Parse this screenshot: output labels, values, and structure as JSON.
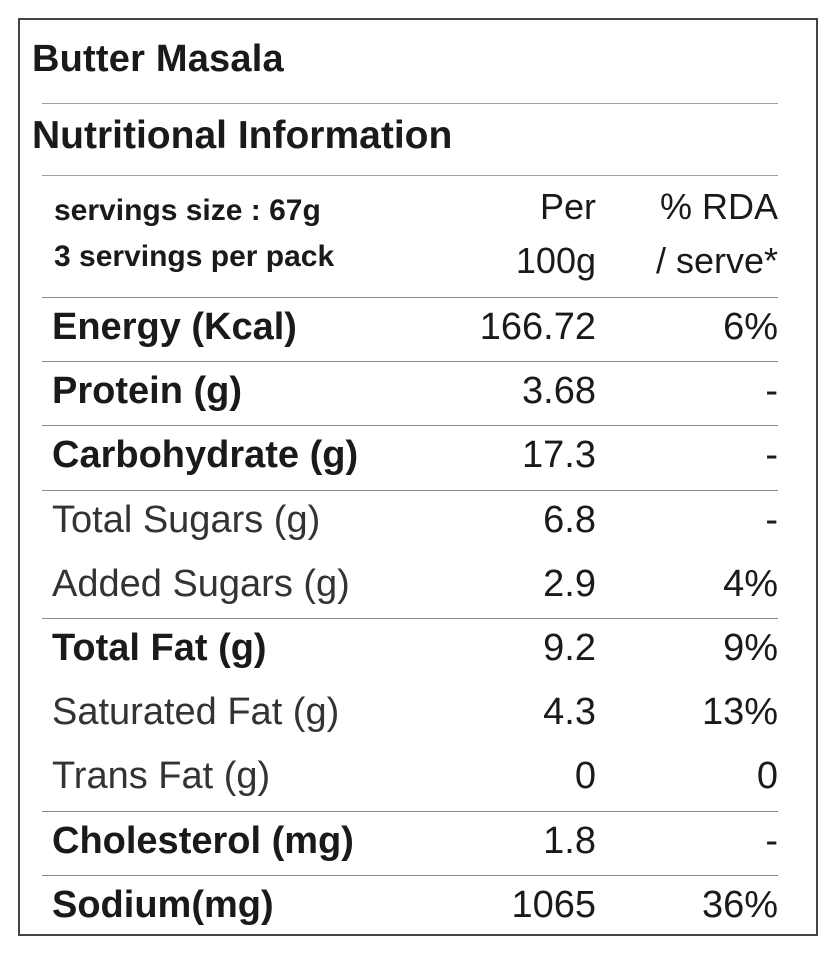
{
  "label": {
    "product_name": "Butter Masala",
    "section_title": "Nutritional Information",
    "serving_size": "servings size : 67g",
    "servings_per_pack": "3 servings per pack",
    "col_per_line1": "Per",
    "col_per_line2": "100g",
    "col_rda_line1": "% RDA",
    "col_rda_line2": "/ serve*"
  },
  "rows": [
    {
      "name": "Energy (Kcal)",
      "per100g": "166.72",
      "rda": "6%",
      "style": "bold"
    },
    {
      "name": "Protein (g)",
      "per100g": "3.68",
      "rda": "-",
      "style": "bold"
    },
    {
      "name": "Carbohydrate (g)",
      "per100g": "17.3",
      "rda": "-",
      "style": "bold"
    },
    {
      "name": "Total Sugars (g)",
      "per100g": "6.8",
      "rda": "-",
      "style": "light"
    },
    {
      "name": "Added Sugars (g)",
      "per100g": "2.9",
      "rda": "4%",
      "style": "light"
    },
    {
      "name": "Total Fat (g)",
      "per100g": "9.2",
      "rda": "9%",
      "style": "bold"
    },
    {
      "name": "Saturated Fat (g)",
      "per100g": "4.3",
      "rda": "13%",
      "style": "light"
    },
    {
      "name": "Trans Fat (g)",
      "per100g": "0",
      "rda": "0",
      "style": "light"
    },
    {
      "name": "Cholesterol (mg)",
      "per100g": "1.8",
      "rda": "-",
      "style": "bold"
    },
    {
      "name": "Sodium(mg)",
      "per100g": "1065",
      "rda": "36%",
      "style": "bold"
    }
  ]
}
